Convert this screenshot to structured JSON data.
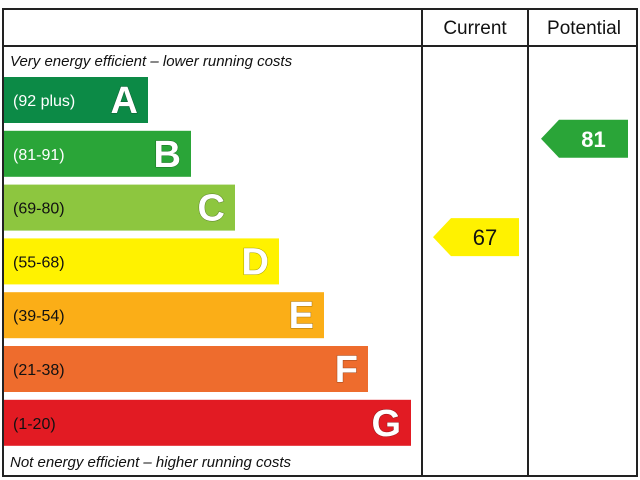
{
  "headers": {
    "current": "Current",
    "potential": "Potential"
  },
  "top_caption": "Very energy efficient – lower running costs",
  "bottom_caption": "Not energy efficient – higher running costs",
  "chart_data": {
    "type": "bar",
    "categories": [
      "A",
      "B",
      "C",
      "D",
      "E",
      "F",
      "G"
    ],
    "ranges": [
      "(92 plus)",
      "(81-91)",
      "(69-80)",
      "(55-68)",
      "(39-54)",
      "(21-38)",
      "(1-20)"
    ],
    "colors": [
      "#0c8a46",
      "#2aa538",
      "#8dc63f",
      "#fff200",
      "#fbae17",
      "#ee6c2d",
      "#e21b23"
    ],
    "range_text_colors": [
      "#ffffff",
      "#ffffff",
      "#111111",
      "#111111",
      "#111111",
      "#111111",
      "#111111"
    ],
    "current": {
      "value": 67,
      "band": "D",
      "color": "#fff200",
      "text_color": "#111111"
    },
    "potential": {
      "value": 81,
      "band": "B",
      "color": "#2aa538",
      "text_color": "#ffffff"
    }
  }
}
